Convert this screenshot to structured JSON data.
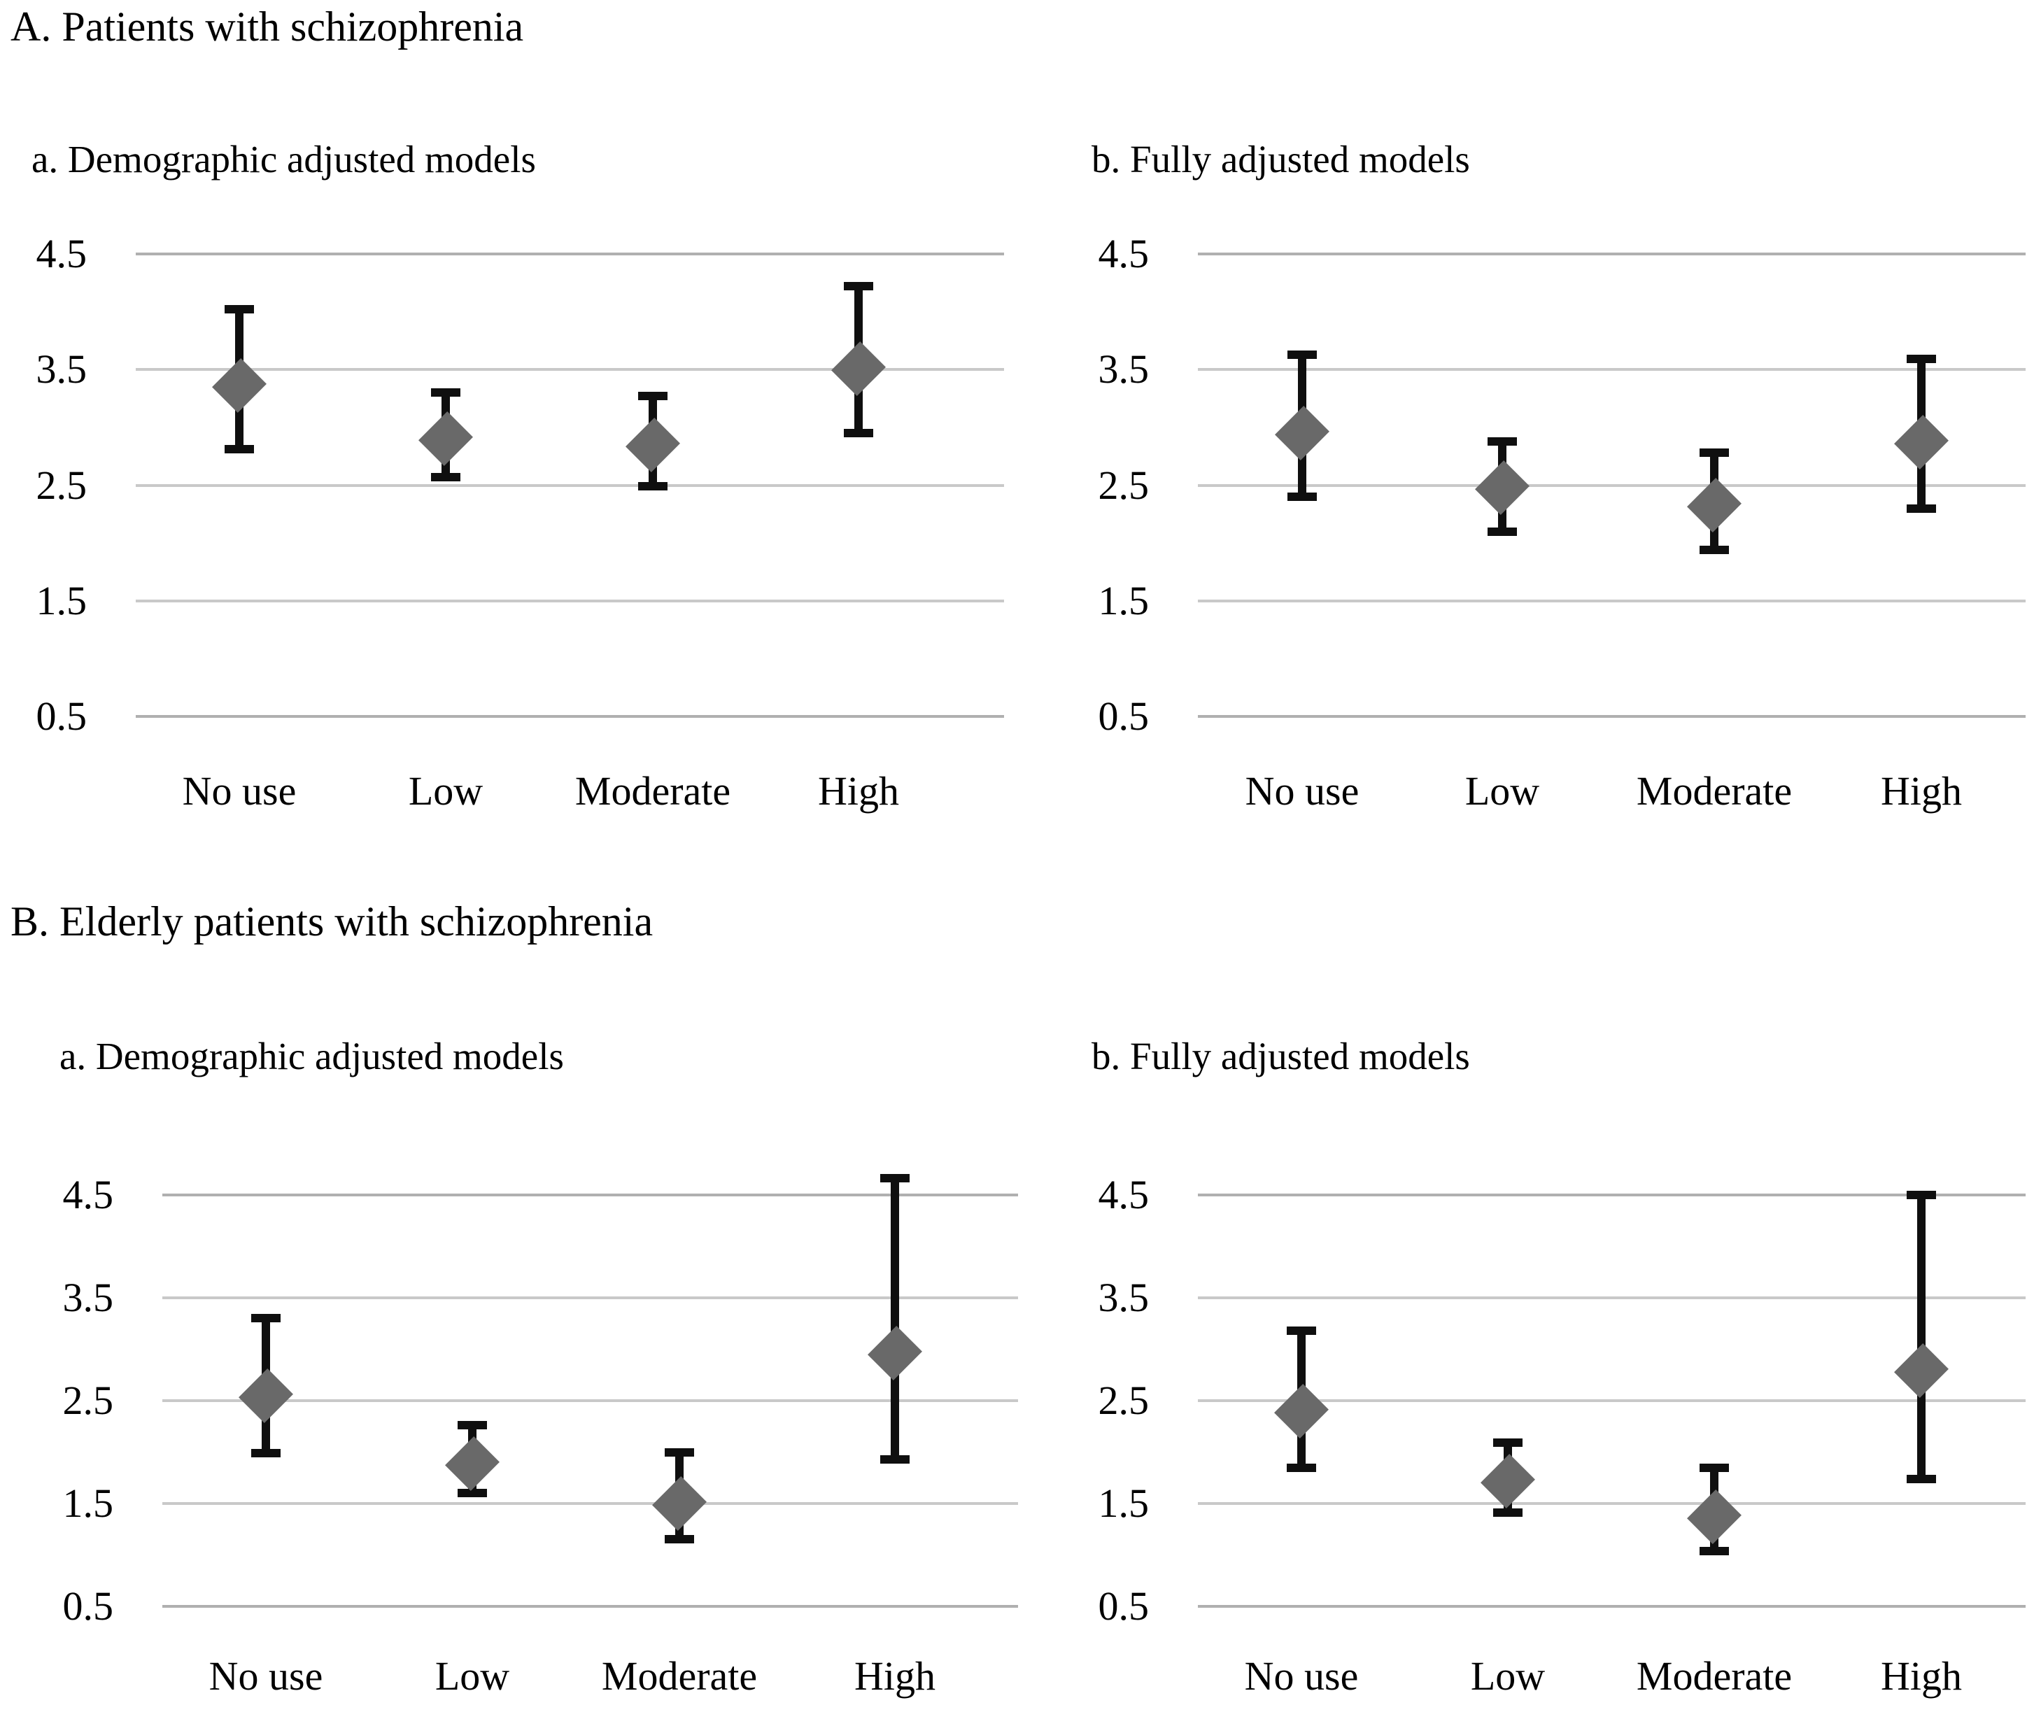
{
  "sections": [
    {
      "title": "A. Patients with schizophrenia"
    },
    {
      "title": "B. Elderly patients with schizophrenia"
    }
  ],
  "colors": {
    "background": "#ffffff",
    "text": "#000000",
    "marker": "#696969",
    "error_bar": "#0f0f0f",
    "gridline": "#c9c9c9",
    "gridline_edge": "#b0b0b0"
  },
  "chart_data": [
    {
      "id": "A.a",
      "type": "scatter",
      "marker": "diamond",
      "title": "a. Demographic adjusted models",
      "section": "A. Patients with schizophrenia",
      "categories": [
        "No use",
        "Low",
        "Moderate",
        "High"
      ],
      "values": [
        3.36,
        2.9,
        2.85,
        3.51
      ],
      "ci_low": [
        2.81,
        2.57,
        2.49,
        2.95
      ],
      "ci_high": [
        4.02,
        3.3,
        3.27,
        4.22
      ],
      "ylim": [
        0.5,
        4.5
      ],
      "yticks": [
        "4.5",
        "3.5",
        "2.5",
        "1.5",
        "0.5"
      ],
      "grid": true,
      "legend": "none"
    },
    {
      "id": "A.b",
      "type": "scatter",
      "marker": "diamond",
      "title": "b. Fully adjusted models",
      "section": "A. Patients with schizophrenia",
      "categories": [
        "No use",
        "Low",
        "Moderate",
        "High"
      ],
      "values": [
        2.95,
        2.48,
        2.33,
        2.87
      ],
      "ci_low": [
        2.4,
        2.1,
        1.94,
        2.3
      ],
      "ci_high": [
        3.63,
        2.88,
        2.78,
        3.59
      ],
      "ylim": [
        0.5,
        4.5
      ],
      "yticks": [
        "4.5",
        "3.5",
        "2.5",
        "1.5",
        "0.5"
      ],
      "grid": true,
      "legend": "none"
    },
    {
      "id": "B.a",
      "type": "scatter",
      "marker": "diamond",
      "title": "a. Demographic adjusted models",
      "section": "B. Elderly patients with schizophrenia",
      "categories": [
        "No use",
        "Low",
        "Moderate",
        "High"
      ],
      "values": [
        2.55,
        1.89,
        1.5,
        2.96
      ],
      "ci_low": [
        1.99,
        1.6,
        1.15,
        1.93
      ],
      "ci_high": [
        3.3,
        2.26,
        2.0,
        4.66
      ],
      "ylim": [
        0.5,
        4.5
      ],
      "yticks": [
        "4.5",
        "3.5",
        "2.5",
        "1.5",
        "0.5"
      ],
      "grid": true,
      "legend": "none"
    },
    {
      "id": "B.b",
      "type": "scatter",
      "marker": "diamond",
      "title": "b. Fully adjusted models",
      "section": "B. Elderly patients with schizophrenia",
      "categories": [
        "No use",
        "Low",
        "Moderate",
        "High"
      ],
      "values": [
        2.4,
        1.72,
        1.37,
        2.79
      ],
      "ci_low": [
        1.85,
        1.41,
        1.04,
        1.74
      ],
      "ci_high": [
        3.18,
        2.09,
        1.85,
        4.5
      ],
      "ylim": [
        0.5,
        4.5
      ],
      "yticks": [
        "4.5",
        "3.5",
        "2.5",
        "1.5",
        "0.5"
      ],
      "grid": true,
      "legend": "none"
    }
  ]
}
